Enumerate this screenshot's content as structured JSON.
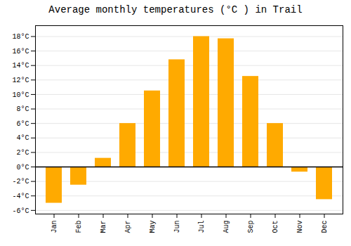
{
  "chart_data": {
    "type": "bar",
    "title": "Average monthly temperatures (°C ) in Trail",
    "categories": [
      "Jan",
      "Feb",
      "Mar",
      "Apr",
      "May",
      "Jun",
      "Jul",
      "Aug",
      "Sep",
      "Oct",
      "Nov",
      "Dec"
    ],
    "values": [
      -5.0,
      -2.5,
      1.2,
      6.0,
      10.5,
      14.8,
      18.0,
      17.7,
      12.5,
      6.0,
      -0.7,
      -4.5
    ],
    "color": "#FFAA00",
    "ylim": [
      -6.5,
      19.5
    ],
    "yticks": [
      {
        "value": -6,
        "label": "-6°C"
      },
      {
        "value": -4,
        "label": "-4°C"
      },
      {
        "value": -2,
        "label": "-2°C"
      },
      {
        "value": 0,
        "label": "0°C"
      },
      {
        "value": 2,
        "label": "2°C"
      },
      {
        "value": 4,
        "label": "4°C"
      },
      {
        "value": 6,
        "label": "6°C"
      },
      {
        "value": 8,
        "label": "8°C"
      },
      {
        "value": 10,
        "label": "10°C"
      },
      {
        "value": 12,
        "label": "12°C"
      },
      {
        "value": 14,
        "label": "14°C"
      },
      {
        "value": 16,
        "label": "16°C"
      },
      {
        "value": 18,
        "label": "18°C"
      }
    ],
    "grid": true
  }
}
